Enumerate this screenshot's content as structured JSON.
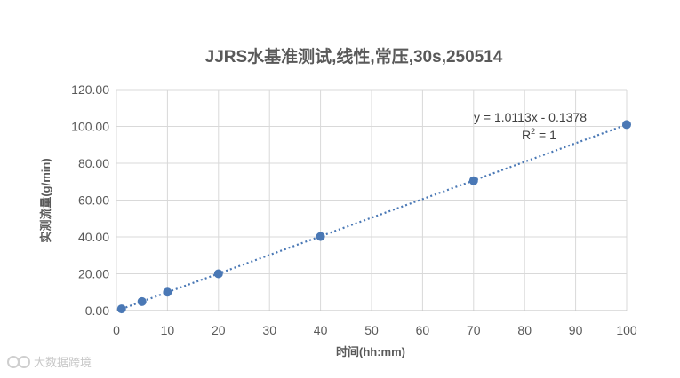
{
  "chart_data": {
    "type": "scatter",
    "title": "JJRS水基准测试,线性,常压,30s,250514",
    "xlabel": "时间(hh:mm)",
    "ylabel": "实测流量(g/min)",
    "xlim": [
      0,
      100
    ],
    "ylim": [
      0,
      120
    ],
    "x_ticks": [
      "0",
      "10",
      "20",
      "30",
      "40",
      "50",
      "60",
      "70",
      "80",
      "90",
      "100"
    ],
    "y_ticks": [
      "0.00",
      "20.00",
      "40.00",
      "60.00",
      "80.00",
      "100.00",
      "120.00"
    ],
    "grid": true,
    "series": [
      {
        "x": [
          1,
          5,
          10,
          20,
          40,
          70,
          100
        ],
        "y": [
          0.9,
          4.9,
          10.0,
          20.0,
          40.2,
          70.5,
          101.0
        ]
      }
    ],
    "trendline": {
      "type": "linear",
      "slope": 1.0113,
      "intercept": -0.1378,
      "equation": "y = 1.0113x - 0.1378",
      "r2_label": "R",
      "r2_sup": "2",
      "r2_value": " = 1"
    },
    "colors": {
      "marker": "#4a78b5",
      "trendline": "#4a78b5",
      "grid": "#d9d9d9",
      "text": "#595959"
    }
  },
  "watermark": {
    "icon": "watermark-logo-icon",
    "text": "大数据跨境"
  }
}
